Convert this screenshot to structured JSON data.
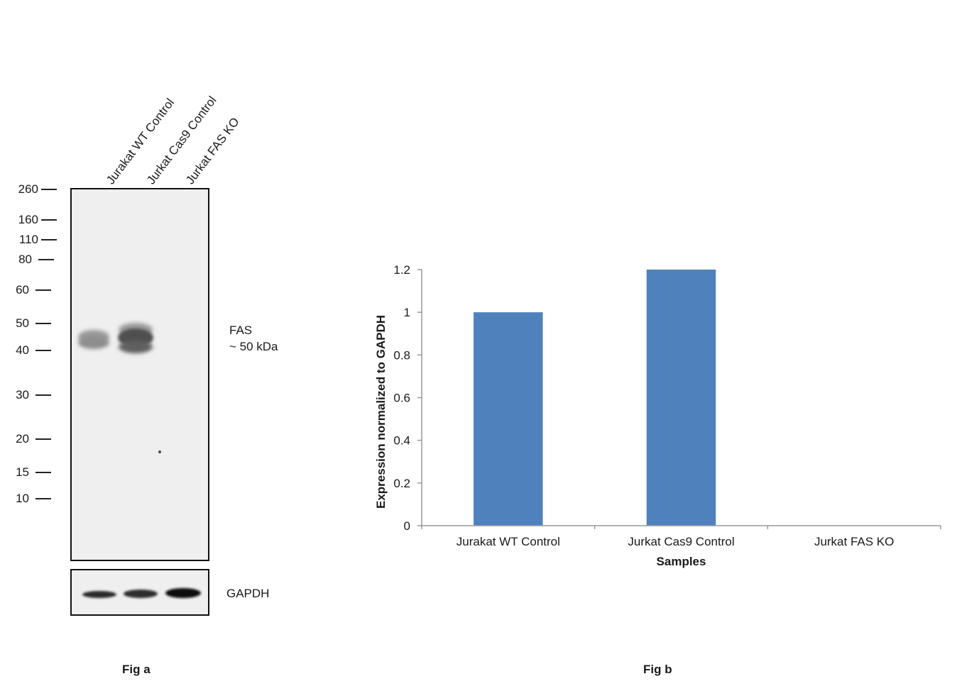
{
  "fig_a": {
    "lanes": [
      "Jurakat WT Control",
      "Jurkat Cas9 Control",
      "Jurkat FAS KO"
    ],
    "mw_markers": [
      "260",
      "160",
      "110",
      "80",
      "60",
      "50",
      "40",
      "30",
      "20",
      "15",
      "10"
    ],
    "band_label_1": "FAS",
    "band_label_2": "~ 50 kDa",
    "loading_control": "GAPDH",
    "caption": "Fig a"
  },
  "fig_b": {
    "caption": "Fig b"
  },
  "chart_data": {
    "type": "bar",
    "categories": [
      "Jurakat WT Control",
      "Jurkat Cas9 Control",
      "Jurkat FAS KO"
    ],
    "values": [
      1.0,
      1.2,
      0
    ],
    "xlabel": "Samples",
    "ylabel": "Expression  normalized to GAPDH",
    "ylim": [
      0,
      1.2
    ],
    "yticks": [
      "0",
      "0.2",
      "0.4",
      "0.6",
      "0.8",
      "1",
      "1.2"
    ],
    "bar_color": "#4f81bd",
    "grid": false,
    "legend": "none"
  }
}
